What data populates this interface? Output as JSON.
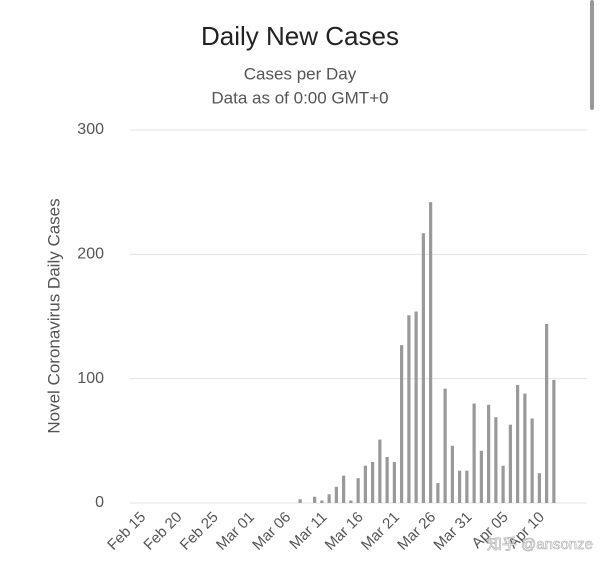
{
  "chart_data": {
    "type": "bar",
    "title": "Daily New Cases",
    "subtitle": "Cases per Day",
    "subtitle2": "Data as of 0:00 GMT+0",
    "y_label": "Novel Coronavirus Daily Cases",
    "watermark": "知乎 @ansonze",
    "categories": [
      "Feb 15",
      null,
      null,
      null,
      null,
      "Feb 20",
      null,
      null,
      null,
      null,
      "Feb 25",
      null,
      null,
      null,
      null,
      "Mar 01",
      null,
      null,
      null,
      null,
      "Mar 06",
      null,
      null,
      null,
      null,
      "Mar 11",
      null,
      null,
      null,
      null,
      "Mar 16",
      null,
      null,
      null,
      null,
      "Mar 21",
      null,
      null,
      null,
      null,
      "Mar 26",
      null,
      null,
      null,
      null,
      "Mar 31",
      null,
      null,
      null,
      null,
      "Apr 05",
      null,
      null,
      null,
      null,
      "Apr 10",
      null,
      null
    ],
    "values": [
      0,
      0,
      0,
      0,
      0,
      0,
      0,
      0,
      0,
      0,
      0,
      0,
      0,
      0,
      0,
      0,
      0,
      0,
      0,
      0,
      0,
      0,
      3,
      0,
      5,
      2,
      7,
      13,
      22,
      2,
      20,
      30,
      33,
      51,
      37,
      33,
      127,
      151,
      154,
      217,
      242,
      16,
      92,
      46,
      26,
      26,
      80,
      42,
      79,
      69,
      30,
      63,
      95,
      88,
      68,
      24,
      144,
      99
    ],
    "color": "#999999",
    "ylim": [
      0,
      300
    ],
    "yticks": [
      0,
      100,
      200,
      300
    ],
    "grid": true
  }
}
